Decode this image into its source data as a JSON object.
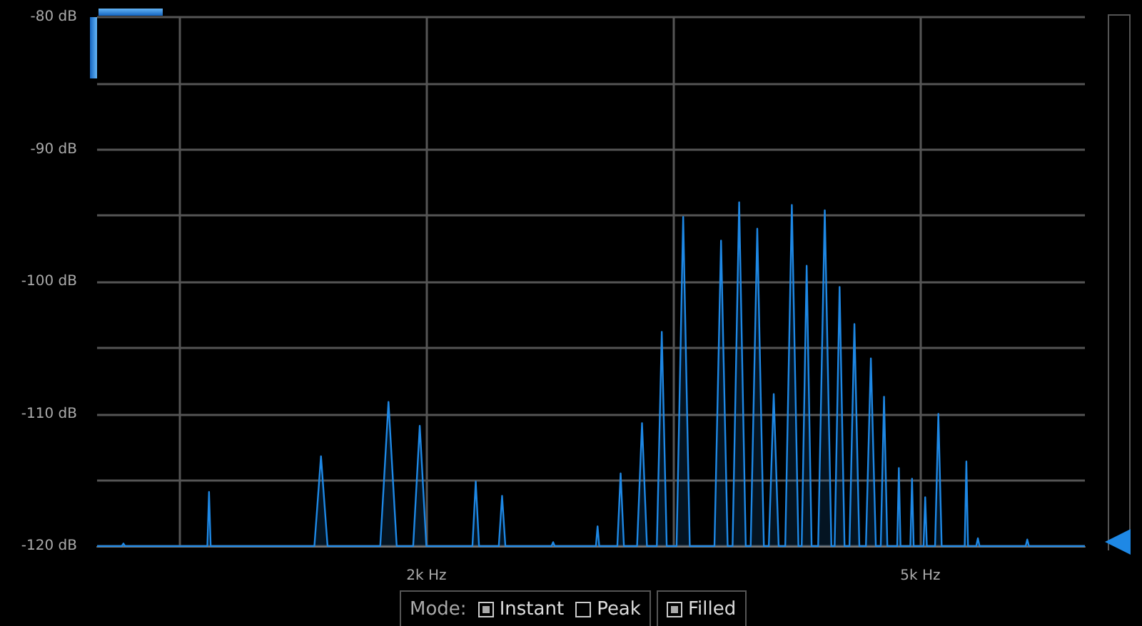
{
  "chart_data": {
    "type": "area",
    "x": [
      0,
      0.15,
      0.16,
      0.17,
      0.67,
      0.68,
      0.69,
      1.32,
      1.36,
      1.4,
      1.72,
      1.77,
      1.82,
      1.92,
      1.96,
      2.0,
      2.28,
      2.3,
      2.32,
      2.44,
      2.46,
      2.48,
      2.76,
      2.77,
      2.78,
      3.03,
      3.04,
      3.05,
      3.16,
      3.18,
      3.2,
      3.28,
      3.31,
      3.34,
      3.4,
      3.43,
      3.46,
      3.52,
      3.56,
      3.6,
      3.75,
      3.79,
      3.83,
      3.86,
      3.9,
      3.94,
      3.97,
      4.01,
      4.05,
      4.08,
      4.11,
      4.14,
      4.18,
      4.22,
      4.26,
      4.28,
      4.31,
      4.34,
      4.38,
      4.42,
      4.46,
      4.48,
      4.51,
      4.54,
      4.57,
      4.6,
      4.63,
      4.67,
      4.7,
      4.73,
      4.76,
      4.78,
      4.8,
      4.86,
      4.87,
      4.88,
      4.94,
      4.95,
      4.96,
      5.02,
      5.03,
      5.04,
      5.09,
      5.11,
      5.13,
      5.27,
      5.28,
      5.29,
      5.34,
      5.35,
      5.36,
      5.64,
      5.65,
      5.66,
      6
    ],
    "series": [
      {
        "color": "#1e88e5",
        "values": [
          -120,
          -120,
          -119.8,
          -120,
          -120,
          -115.9,
          -120,
          -120,
          -113.2,
          -120,
          -120,
          -109.1,
          -120,
          -120,
          -110.9,
          -120,
          -120,
          -115.1,
          -120,
          -120,
          -116.2,
          -120,
          -120,
          -119.7,
          -120,
          -120,
          -118.5,
          -120,
          -120,
          -114.5,
          -120,
          -120,
          -110.7,
          -120,
          -120,
          -103.8,
          -120,
          -120,
          -95.1,
          -120,
          -120,
          -96.9,
          -120,
          -120,
          -94.0,
          -120,
          -120,
          -96.0,
          -120,
          -120,
          -108.5,
          -120,
          -120,
          -94.2,
          -120,
          -120,
          -98.8,
          -120,
          -120,
          -94.6,
          -120,
          -120,
          -100.4,
          -120,
          -120,
          -103.2,
          -120,
          -120,
          -105.8,
          -120,
          -120,
          -108.7,
          -120,
          -120,
          -114.1,
          -120,
          -120,
          -114.9,
          -120,
          -120,
          -116.3,
          -120,
          -120,
          -110.0,
          -120,
          -120,
          -113.6,
          -120,
          -120,
          -119.4,
          -120,
          -120,
          -119.5,
          -120,
          -120
        ]
      }
    ],
    "xlim": [
      0,
      6
    ],
    "xticks": [
      {
        "value": 0.5,
        "label": null
      },
      {
        "value": 2,
        "label": "2k Hz"
      },
      {
        "value": 3.5,
        "label": null
      },
      {
        "value": 5,
        "label": "5k Hz"
      }
    ],
    "ylim": [
      -120,
      -80
    ],
    "yticks": [
      {
        "value": -120,
        "label": "-120 dB"
      },
      {
        "value": -115,
        "label": null
      },
      {
        "value": -110,
        "label": "-110 dB"
      },
      {
        "value": -105,
        "label": null
      },
      {
        "value": -100,
        "label": "-100 dB"
      },
      {
        "value": -95,
        "label": null
      },
      {
        "value": -90,
        "label": "-90 dB"
      },
      {
        "value": -85,
        "label": null
      },
      {
        "value": -80,
        "label": "-80 dB"
      }
    ],
    "grid": true,
    "marker": "none",
    "annotations": [
      "Mode:",
      "Instant",
      "Peak",
      "Filled"
    ]
  }
}
